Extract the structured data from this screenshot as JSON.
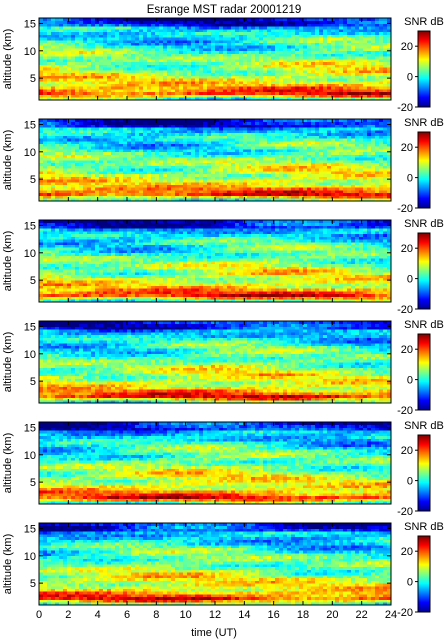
{
  "chart_data": {
    "type": "heatmap",
    "title": "Esrange MST radar 20001219",
    "xlabel": "time (UT)",
    "ylabel": "altitude (km)",
    "xlim": [
      0,
      24
    ],
    "ylim": [
      1,
      16
    ],
    "x_ticks": [
      0,
      2,
      4,
      6,
      8,
      10,
      12,
      14,
      16,
      18,
      20,
      22,
      24
    ],
    "y_ticks": [
      5,
      10,
      15
    ],
    "colorbar": {
      "label": "SNR dB",
      "range": [
        -20,
        30
      ],
      "ticks": [
        -20,
        0,
        20
      ],
      "colormap": "jet"
    },
    "panels": [
      {
        "index": 1,
        "description": "strongest SNR near 1-3 km, banded layers 5-15 km"
      },
      {
        "index": 2,
        "description": "similar structure"
      },
      {
        "index": 3,
        "description": "similar structure"
      },
      {
        "index": 4,
        "description": "similar structure"
      },
      {
        "index": 5,
        "description": "similar structure"
      },
      {
        "index": 6,
        "description": "similar structure"
      }
    ]
  }
}
